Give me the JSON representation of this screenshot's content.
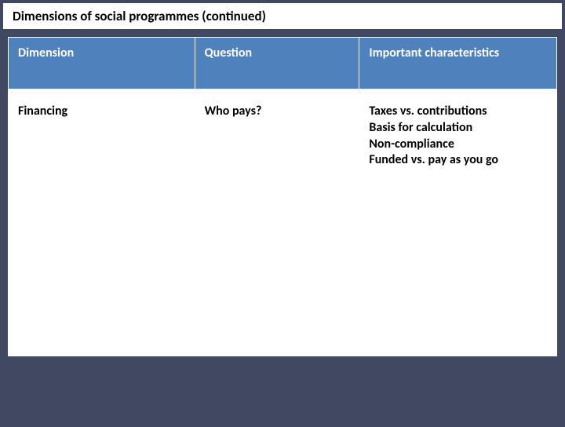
{
  "slide": {
    "title": "Dimensions of social programmes (continued)",
    "background_color": "#404862",
    "title_bg": "#ffffff",
    "title_color": "#000000",
    "title_fontsize": 17
  },
  "table": {
    "type": "table",
    "header_bg": "#4f81bd",
    "header_color": "#ffffff",
    "cell_bg": "#ffffff",
    "cell_color": "#000000",
    "border_color": "#ffffff",
    "fontsize": 16,
    "font_weight": "bold",
    "columns": [
      {
        "label": "Dimension",
        "width_pct": 34
      },
      {
        "label": "Question",
        "width_pct": 30
      },
      {
        "label": "Important characteristics",
        "width_pct": 36
      }
    ],
    "rows": [
      {
        "dimension": "Financing",
        "question": "Who pays?",
        "characteristics": "Taxes vs. contributions\nBasis for calculation\nNon-compliance\nFunded vs. pay as you go"
      }
    ]
  }
}
